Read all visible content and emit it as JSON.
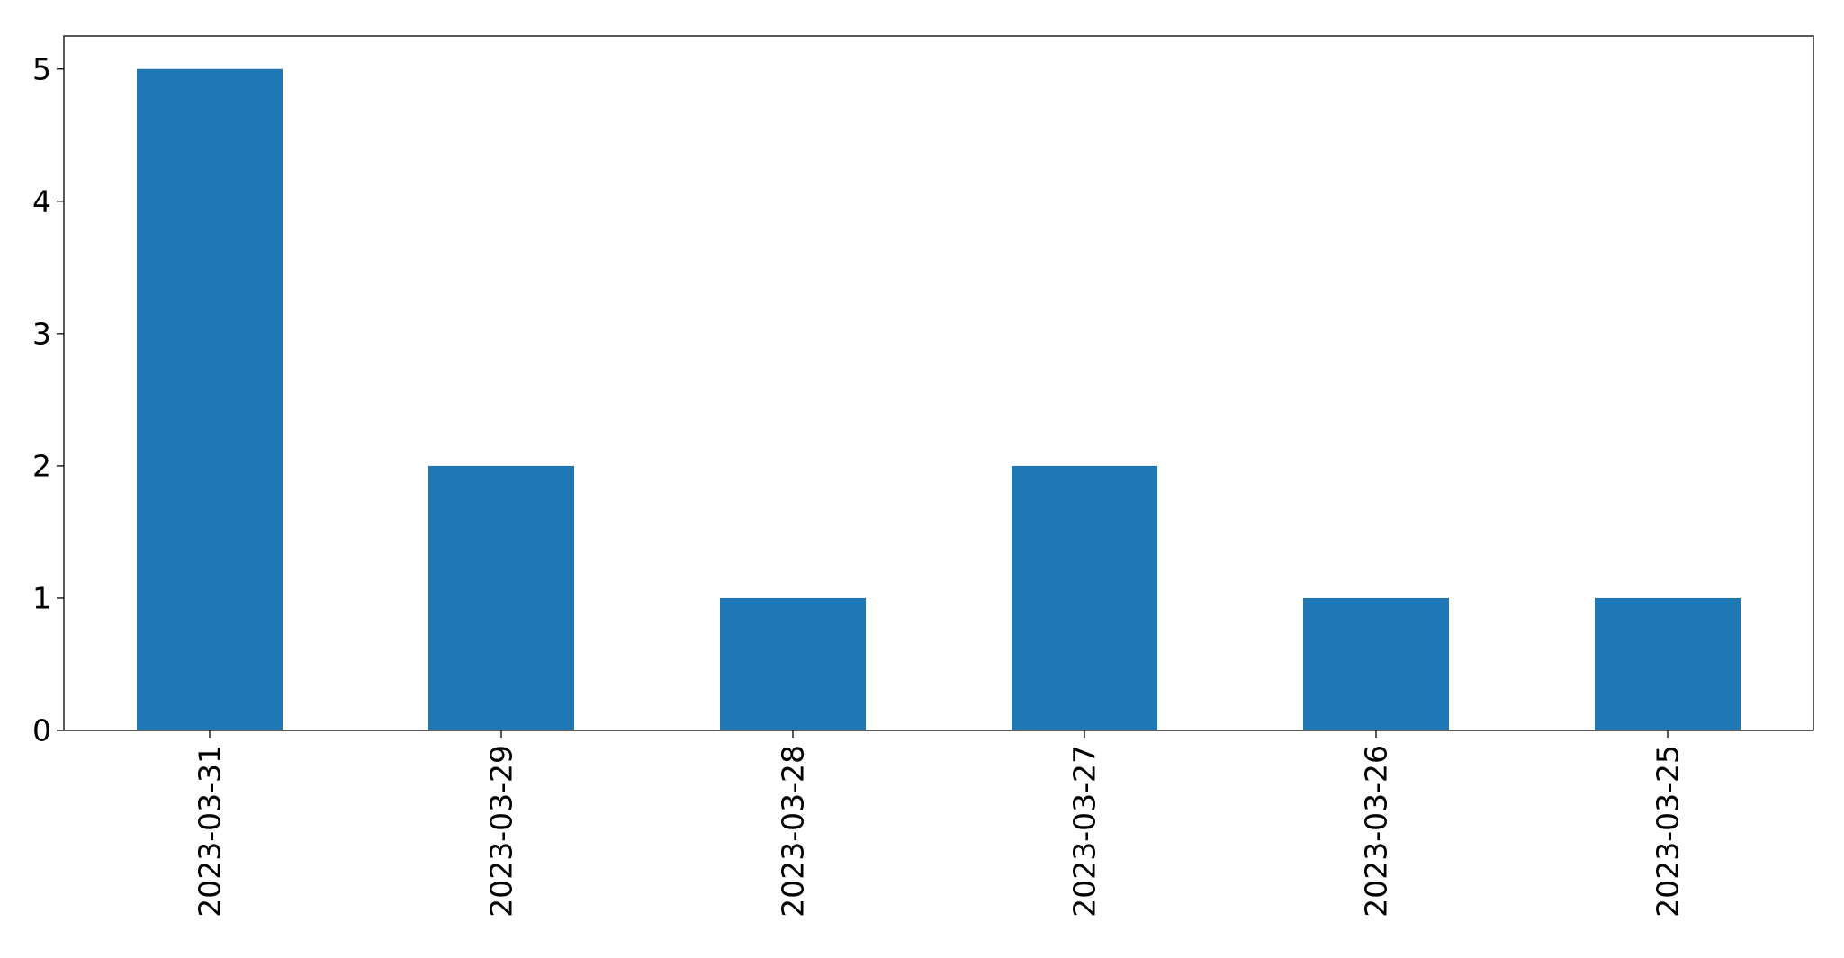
{
  "chart_data": {
    "type": "bar",
    "categories": [
      "2023-03-31",
      "2023-03-29",
      "2023-03-28",
      "2023-03-27",
      "2023-03-26",
      "2023-03-25"
    ],
    "values": [
      5,
      2,
      1,
      2,
      1,
      1
    ],
    "title": "",
    "xlabel": "",
    "ylabel": "",
    "ylim": [
      0,
      5.25
    ],
    "yticks": [
      0,
      1,
      2,
      3,
      4,
      5
    ],
    "grid": false,
    "legend": "none",
    "bar_color": "#1f77b4"
  }
}
